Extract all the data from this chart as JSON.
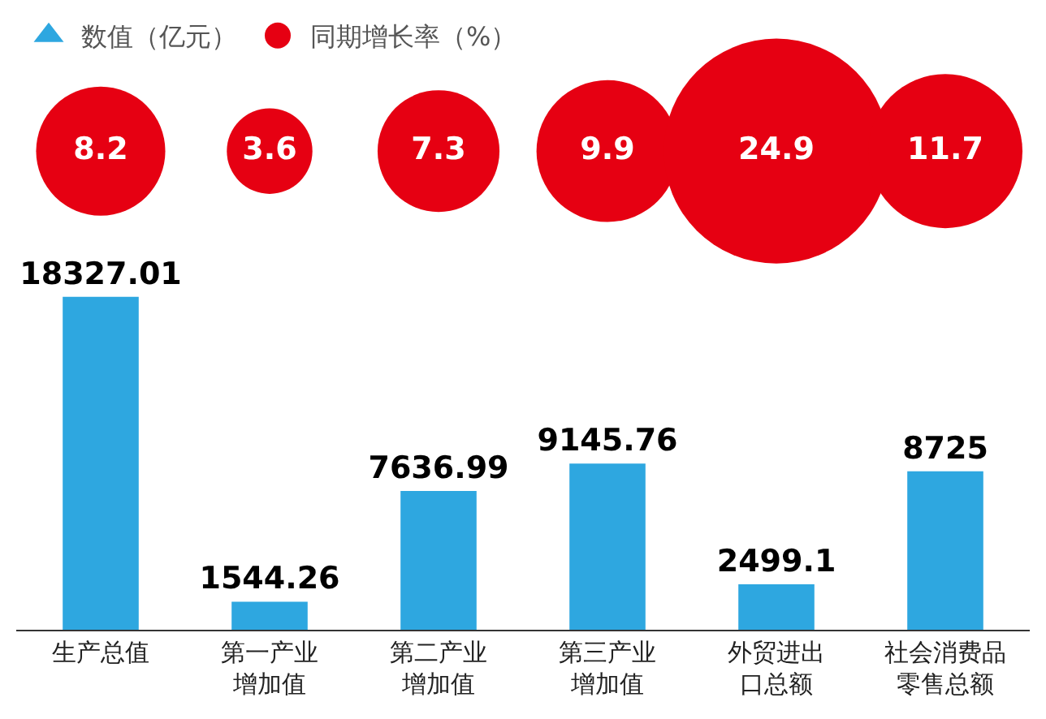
{
  "chart_data": [
    {
      "type": "other",
      "categories": [
        null,
        null,
        null,
        null,
        null,
        null
      ],
      "series": [
        {
          "name": "同期增长率（%）",
          "color": "#e60012",
          "values": [
            8.2,
            3.6,
            7.3,
            9.9,
            24.9,
            11.7
          ]
        }
      ],
      "data_labels": true
    },
    {
      "type": "bar",
      "categories": [
        "生产总值",
        "第一产业增加值",
        "第二产业增加值",
        "第三产业增加值",
        "外贸进出口总额",
        "社会消费品零售总额"
      ],
      "series": [
        {
          "name": "数值（亿元）",
          "color": "#2ea7e0",
          "values": [
            18327.01,
            1544.26,
            7636.99,
            9145.76,
            2499.1,
            8725
          ]
        }
      ],
      "data_labels": true,
      "legend": "top left",
      "tick_labels": "x"
    }
  ]
}
